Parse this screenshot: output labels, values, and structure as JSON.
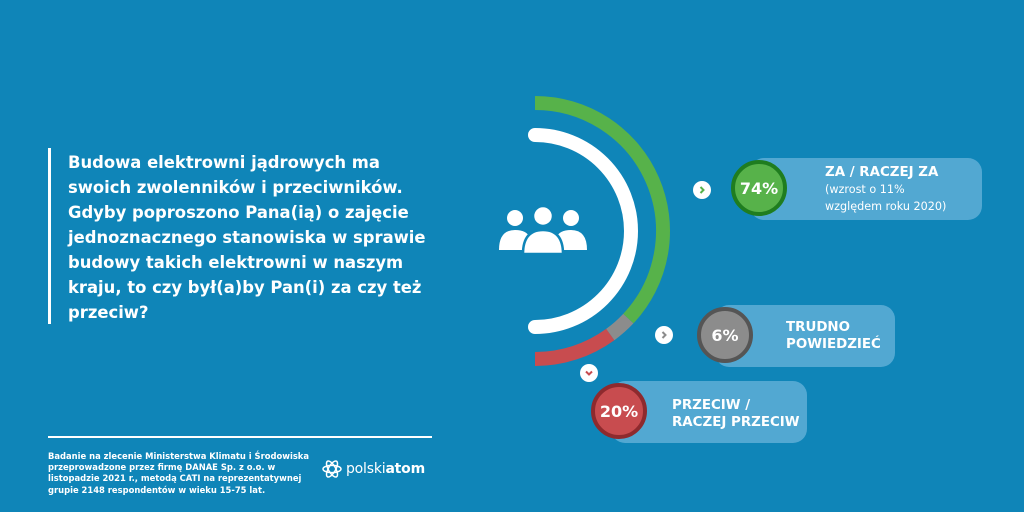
{
  "question": "Budowa elektrowni jądrowych ma swoich zwolenników i przeciwników. Gdyby poproszono Pana(ią) o zajęcie jednoznacznego stanowiska w sprawie budowy takich elektrowni w naszym kraju, to czy był(a)by Pan(i) za czy też przeciw?",
  "footnote": "Badanie na zlecenie Ministerstwa Klimatu i Środowiska przeprowadzone przez firmę DANAE Sp. z o.o. w listopadzie 2021 r., metodą CATI na reprezentatywnej grupie 2148 respondentów w wieku 15-75 lat.",
  "logo": {
    "light": "polski",
    "bold": "atom"
  },
  "colors": {
    "background": "#0f85b8",
    "pill": "#52a8d2",
    "za": "#57b24a",
    "trudno": "#8c8c8c",
    "przeciw": "#c84c4f"
  },
  "icons": [
    "people-icon",
    "chevron-right-icon",
    "chevron-down-icon",
    "atom-logo-icon"
  ],
  "chart_data": {
    "type": "pie",
    "categories": [
      "ZA / RACZEJ ZA",
      "TRUDNO POWIEDZIEĆ",
      "PRZECIW / RACZEJ PRZECIW"
    ],
    "values": [
      74,
      6,
      20
    ],
    "unit": "%",
    "value_labels": [
      "74%",
      "6%",
      "20%"
    ],
    "labels": [
      {
        "line1": "ZA / RACZEJ ZA",
        "note1": "(wzrost o 11%",
        "note2": "względem roku 2020)"
      },
      {
        "line1": "TRUDNO",
        "line2": "POWIEDZIEĆ"
      },
      {
        "line1": "PRZECIW /",
        "line2": "RACZEJ PRZECIW"
      }
    ],
    "colors": [
      "#57b24a",
      "#8c8c8c",
      "#c84c4f"
    ]
  }
}
